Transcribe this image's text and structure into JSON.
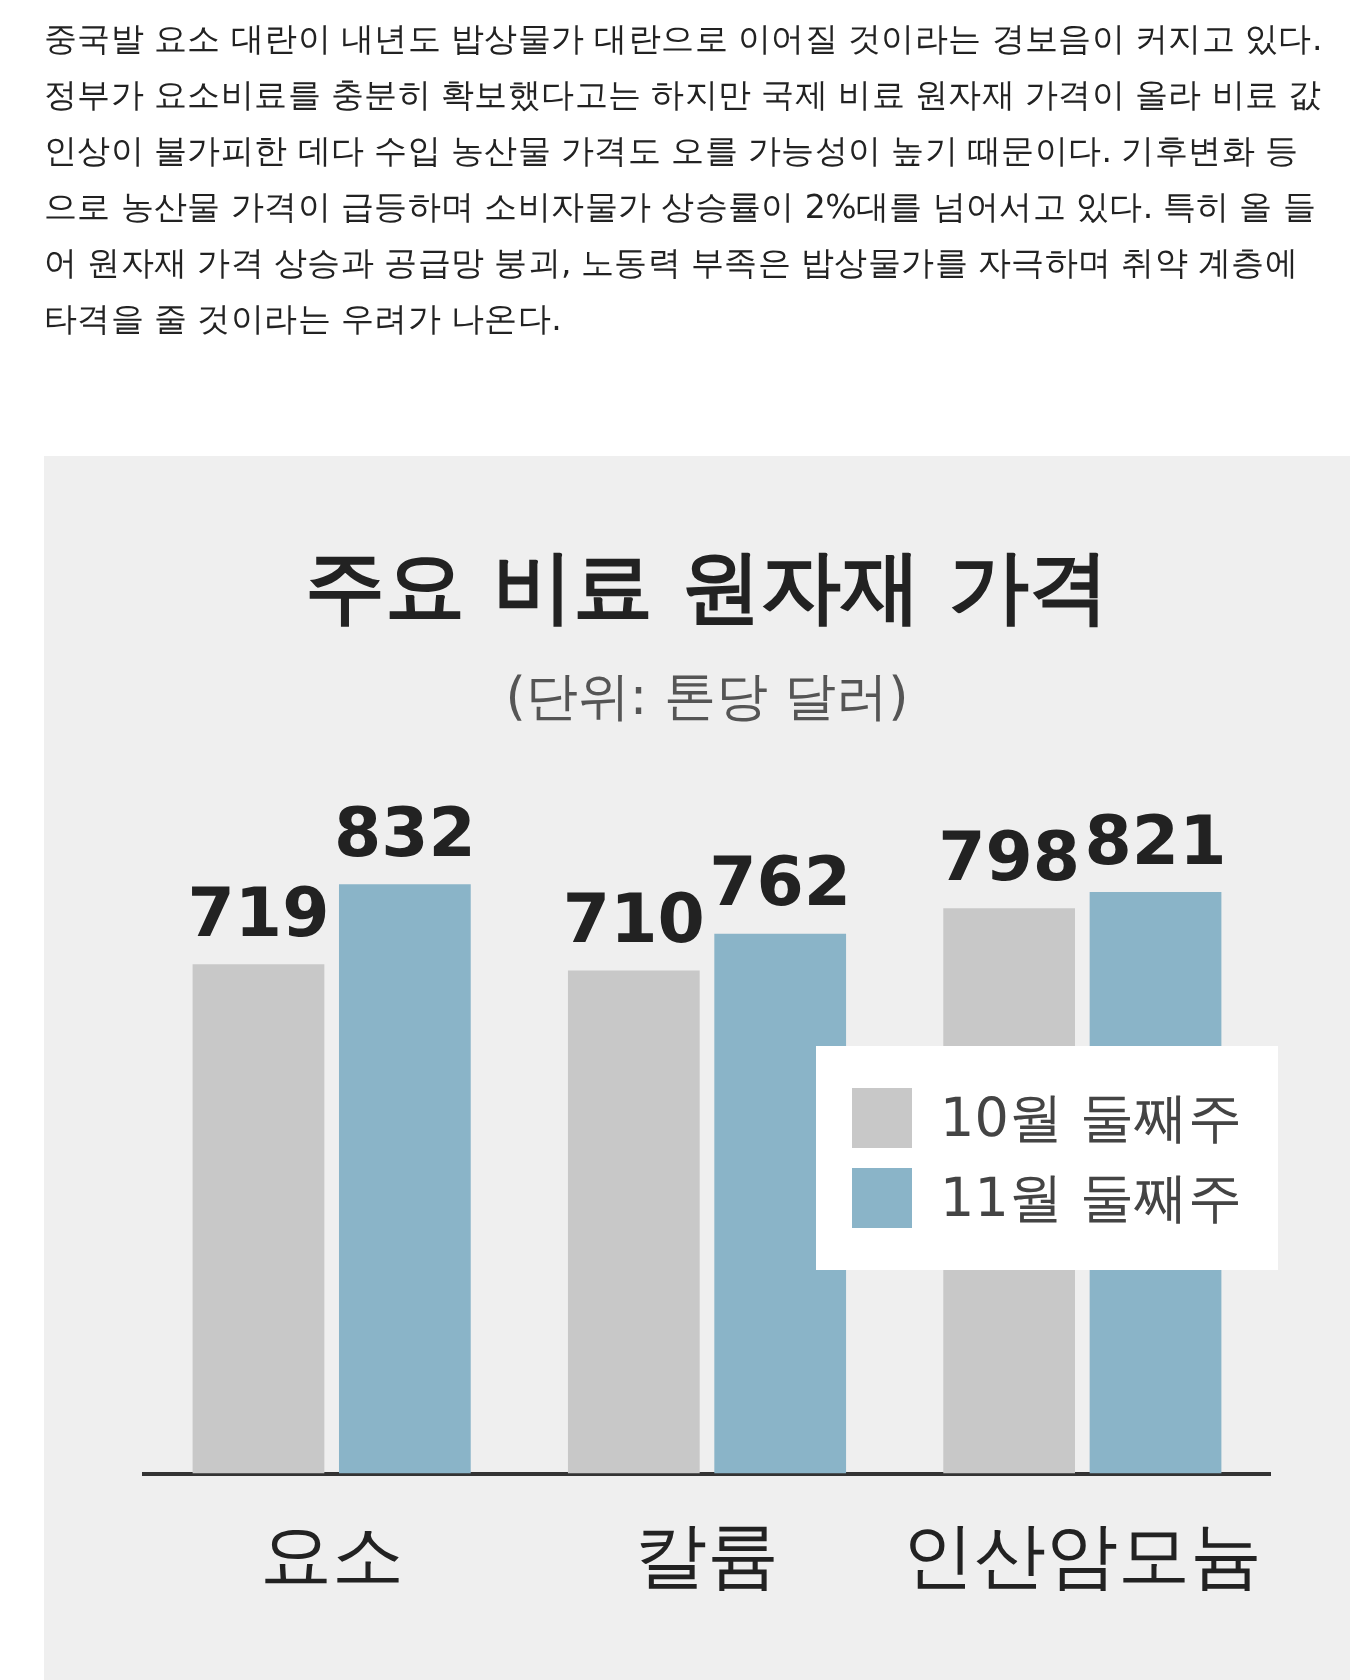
{
  "chart_data": {
    "type": "bar",
    "title": "주요 비료 원자재 가격",
    "subtitle": "(단위: 톤당 달러)",
    "annotations": [
      "중국발 요소 대란이 내년도 밥상물가 대란으로 이어질 것이라는 경보음이 커지고 있다. 정부가 요소비료를 충분히 확보했다고는 하지만 국제 비료 원자재 가격이 올라 비료 값 인상이 불가피한 데다 수입 농산물 가격도 오를 가능성이 높기 때문이다. 기후변화 등으로 농산물 가격이 급등하며 소비자물가 상승률이 2%대를 넘어서고 있다. 특히 올 들어 원자재 가격 상승과 공급망 붕괴, 노동력 부족은 밥상물가를 자극하며 취약 계층에 타격을 줄 것이라는 우려가 나온다."
    ],
    "categories": [
      "요소",
      "칼륨",
      "인산암모늄"
    ],
    "series": [
      {
        "name": "10월 둘째주",
        "color": "#c8c8c8",
        "values": [
          719,
          710,
          798
        ]
      },
      {
        "name": "11월 둘째주",
        "color": "#8ab4c8",
        "values": [
          832,
          762,
          821
        ]
      }
    ],
    "data_labels": true,
    "grid": false,
    "legend": "right",
    "tick_labels": "x"
  }
}
